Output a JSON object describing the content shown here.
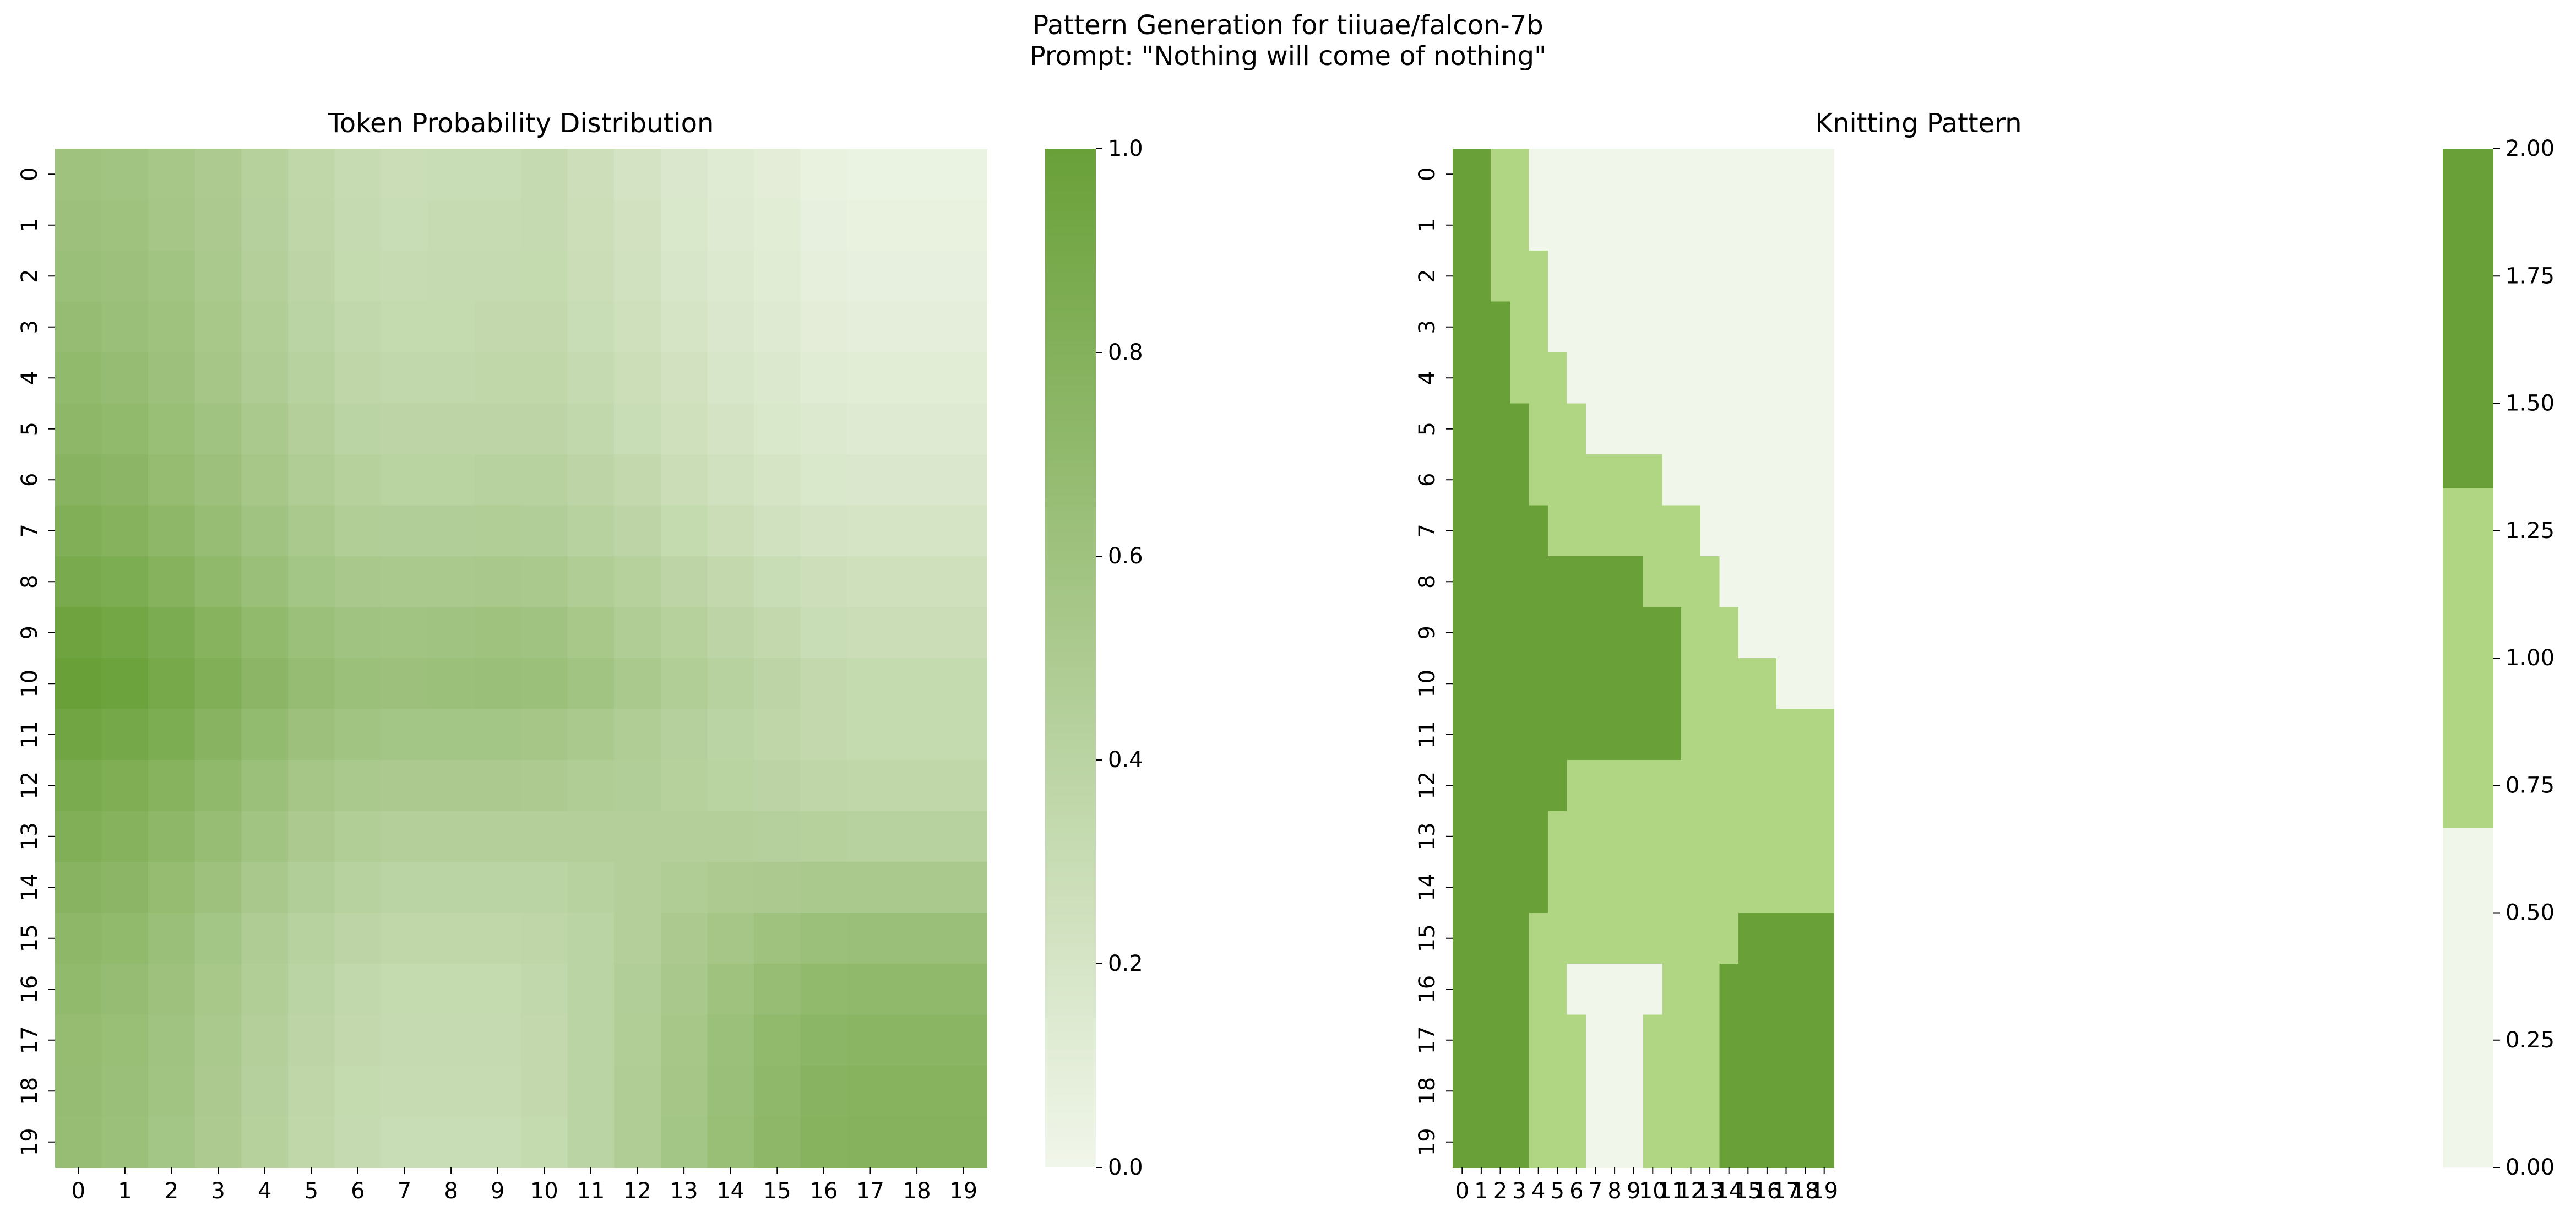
{
  "suptitle": {
    "line1": "Pattern Generation for tiiuae/falcon-7b",
    "line2": "Prompt: \"Nothing will come of nothing\""
  },
  "colors": {
    "low": "#f1f6ea",
    "high": "#69a038",
    "mid": "#b0d684"
  },
  "chart_data": [
    {
      "type": "heatmap",
      "title": "Token Probability Distribution",
      "rows": [
        "0",
        "1",
        "2",
        "3",
        "4",
        "5",
        "6",
        "7",
        "8",
        "9",
        "10",
        "11",
        "12",
        "13",
        "14",
        "15",
        "16",
        "17",
        "18",
        "19"
      ],
      "cols": [
        "0",
        "1",
        "2",
        "3",
        "4",
        "5",
        "6",
        "7",
        "8",
        "9",
        "10",
        "11",
        "12",
        "13",
        "14",
        "15",
        "16",
        "17",
        "18",
        "19"
      ],
      "colorbar": {
        "min": 0.0,
        "max": 1.0,
        "ticks": [
          "0.0",
          "0.2",
          "0.4",
          "0.6",
          "0.8",
          "1.0"
        ]
      },
      "values": [
        [
          0.6,
          0.58,
          0.55,
          0.5,
          0.43,
          0.36,
          0.31,
          0.29,
          0.3,
          0.3,
          0.32,
          0.27,
          0.22,
          0.17,
          0.13,
          0.1,
          0.06,
          0.05,
          0.05,
          0.05
        ],
        [
          0.62,
          0.6,
          0.56,
          0.51,
          0.44,
          0.37,
          0.32,
          0.3,
          0.31,
          0.31,
          0.32,
          0.28,
          0.23,
          0.18,
          0.14,
          0.11,
          0.07,
          0.06,
          0.06,
          0.06
        ],
        [
          0.64,
          0.62,
          0.58,
          0.52,
          0.45,
          0.38,
          0.33,
          0.31,
          0.32,
          0.32,
          0.33,
          0.29,
          0.24,
          0.19,
          0.15,
          0.12,
          0.08,
          0.07,
          0.07,
          0.07
        ],
        [
          0.67,
          0.64,
          0.6,
          0.54,
          0.47,
          0.4,
          0.35,
          0.33,
          0.33,
          0.34,
          0.34,
          0.3,
          0.26,
          0.21,
          0.17,
          0.14,
          0.1,
          0.09,
          0.09,
          0.09
        ],
        [
          0.7,
          0.67,
          0.62,
          0.56,
          0.49,
          0.42,
          0.37,
          0.35,
          0.35,
          0.36,
          0.36,
          0.32,
          0.28,
          0.23,
          0.19,
          0.16,
          0.12,
          0.11,
          0.11,
          0.11
        ],
        [
          0.73,
          0.7,
          0.65,
          0.59,
          0.52,
          0.45,
          0.4,
          0.38,
          0.38,
          0.38,
          0.38,
          0.35,
          0.3,
          0.26,
          0.22,
          0.18,
          0.15,
          0.14,
          0.14,
          0.14
        ],
        [
          0.77,
          0.74,
          0.68,
          0.62,
          0.55,
          0.48,
          0.43,
          0.41,
          0.41,
          0.42,
          0.42,
          0.38,
          0.34,
          0.29,
          0.25,
          0.21,
          0.18,
          0.17,
          0.17,
          0.17
        ],
        [
          0.82,
          0.79,
          0.73,
          0.66,
          0.59,
          0.52,
          0.47,
          0.46,
          0.46,
          0.47,
          0.46,
          0.42,
          0.38,
          0.33,
          0.29,
          0.25,
          0.22,
          0.21,
          0.21,
          0.21
        ],
        [
          0.88,
          0.85,
          0.79,
          0.71,
          0.64,
          0.57,
          0.53,
          0.52,
          0.52,
          0.53,
          0.52,
          0.48,
          0.43,
          0.38,
          0.34,
          0.3,
          0.27,
          0.26,
          0.26,
          0.26
        ],
        [
          0.96,
          0.93,
          0.86,
          0.78,
          0.7,
          0.63,
          0.59,
          0.58,
          0.59,
          0.6,
          0.59,
          0.54,
          0.48,
          0.43,
          0.38,
          0.34,
          0.3,
          0.29,
          0.29,
          0.29
        ],
        [
          1.0,
          0.97,
          0.9,
          0.82,
          0.74,
          0.67,
          0.63,
          0.62,
          0.63,
          0.64,
          0.63,
          0.58,
          0.52,
          0.47,
          0.42,
          0.38,
          0.34,
          0.33,
          0.33,
          0.33
        ],
        [
          0.94,
          0.91,
          0.85,
          0.77,
          0.69,
          0.62,
          0.58,
          0.57,
          0.57,
          0.57,
          0.56,
          0.52,
          0.48,
          0.44,
          0.4,
          0.37,
          0.34,
          0.33,
          0.33,
          0.33
        ],
        [
          0.87,
          0.84,
          0.78,
          0.71,
          0.63,
          0.56,
          0.52,
          0.51,
          0.51,
          0.51,
          0.5,
          0.48,
          0.46,
          0.43,
          0.41,
          0.39,
          0.37,
          0.36,
          0.36,
          0.36
        ],
        [
          0.82,
          0.79,
          0.73,
          0.66,
          0.58,
          0.51,
          0.47,
          0.45,
          0.45,
          0.45,
          0.45,
          0.45,
          0.45,
          0.45,
          0.45,
          0.44,
          0.43,
          0.42,
          0.42,
          0.42
        ],
        [
          0.77,
          0.74,
          0.68,
          0.61,
          0.53,
          0.46,
          0.42,
          0.4,
          0.4,
          0.4,
          0.4,
          0.42,
          0.45,
          0.48,
          0.5,
          0.51,
          0.52,
          0.52,
          0.52,
          0.52
        ],
        [
          0.73,
          0.7,
          0.64,
          0.57,
          0.49,
          0.42,
          0.38,
          0.36,
          0.36,
          0.36,
          0.37,
          0.4,
          0.45,
          0.51,
          0.56,
          0.6,
          0.63,
          0.64,
          0.64,
          0.64
        ],
        [
          0.7,
          0.67,
          0.61,
          0.54,
          0.47,
          0.4,
          0.35,
          0.33,
          0.33,
          0.33,
          0.35,
          0.4,
          0.46,
          0.53,
          0.6,
          0.66,
          0.7,
          0.71,
          0.71,
          0.71
        ],
        [
          0.68,
          0.65,
          0.59,
          0.52,
          0.45,
          0.38,
          0.34,
          0.32,
          0.32,
          0.32,
          0.34,
          0.4,
          0.47,
          0.55,
          0.63,
          0.7,
          0.75,
          0.76,
          0.76,
          0.76
        ],
        [
          0.67,
          0.64,
          0.58,
          0.51,
          0.44,
          0.37,
          0.33,
          0.31,
          0.31,
          0.31,
          0.34,
          0.4,
          0.48,
          0.56,
          0.64,
          0.72,
          0.77,
          0.78,
          0.78,
          0.78
        ],
        [
          0.66,
          0.63,
          0.57,
          0.5,
          0.43,
          0.36,
          0.32,
          0.3,
          0.3,
          0.3,
          0.33,
          0.4,
          0.48,
          0.57,
          0.65,
          0.73,
          0.78,
          0.79,
          0.79,
          0.79
        ]
      ]
    },
    {
      "type": "heatmap",
      "title": "Knitting Pattern",
      "rows": [
        "0",
        "1",
        "2",
        "3",
        "4",
        "5",
        "6",
        "7",
        "8",
        "9",
        "10",
        "11",
        "12",
        "13",
        "14",
        "15",
        "16",
        "17",
        "18",
        "19"
      ],
      "cols": [
        "0",
        "1",
        "2",
        "3",
        "4",
        "5",
        "6",
        "7",
        "8",
        "9",
        "10",
        "11",
        "12",
        "13",
        "14",
        "15",
        "16",
        "17",
        "18",
        "19"
      ],
      "colorbar": {
        "min": 0.0,
        "max": 2.0,
        "levels": 3,
        "ticks": [
          "0.00",
          "0.25",
          "0.50",
          "0.75",
          "1.00",
          "1.25",
          "1.50",
          "1.75",
          "2.00"
        ]
      },
      "values": [
        [
          2,
          2,
          1,
          1,
          0,
          0,
          0,
          0,
          0,
          0,
          0,
          0,
          0,
          0,
          0,
          0,
          0,
          0,
          0,
          0
        ],
        [
          2,
          2,
          1,
          1,
          0,
          0,
          0,
          0,
          0,
          0,
          0,
          0,
          0,
          0,
          0,
          0,
          0,
          0,
          0,
          0
        ],
        [
          2,
          2,
          1,
          1,
          1,
          0,
          0,
          0,
          0,
          0,
          0,
          0,
          0,
          0,
          0,
          0,
          0,
          0,
          0,
          0
        ],
        [
          2,
          2,
          2,
          1,
          1,
          0,
          0,
          0,
          0,
          0,
          0,
          0,
          0,
          0,
          0,
          0,
          0,
          0,
          0,
          0
        ],
        [
          2,
          2,
          2,
          1,
          1,
          1,
          0,
          0,
          0,
          0,
          0,
          0,
          0,
          0,
          0,
          0,
          0,
          0,
          0,
          0
        ],
        [
          2,
          2,
          2,
          2,
          1,
          1,
          1,
          0,
          0,
          0,
          0,
          0,
          0,
          0,
          0,
          0,
          0,
          0,
          0,
          0
        ],
        [
          2,
          2,
          2,
          2,
          1,
          1,
          1,
          1,
          1,
          1,
          1,
          0,
          0,
          0,
          0,
          0,
          0,
          0,
          0,
          0
        ],
        [
          2,
          2,
          2,
          2,
          2,
          1,
          1,
          1,
          1,
          1,
          1,
          1,
          1,
          0,
          0,
          0,
          0,
          0,
          0,
          0
        ],
        [
          2,
          2,
          2,
          2,
          2,
          2,
          2,
          2,
          2,
          2,
          1,
          1,
          1,
          1,
          0,
          0,
          0,
          0,
          0,
          0
        ],
        [
          2,
          2,
          2,
          2,
          2,
          2,
          2,
          2,
          2,
          2,
          2,
          2,
          1,
          1,
          1,
          0,
          0,
          0,
          0,
          0
        ],
        [
          2,
          2,
          2,
          2,
          2,
          2,
          2,
          2,
          2,
          2,
          2,
          2,
          1,
          1,
          1,
          1,
          1,
          0,
          0,
          0
        ],
        [
          2,
          2,
          2,
          2,
          2,
          2,
          2,
          2,
          2,
          2,
          2,
          2,
          1,
          1,
          1,
          1,
          1,
          1,
          1,
          1
        ],
        [
          2,
          2,
          2,
          2,
          2,
          2,
          1,
          1,
          1,
          1,
          1,
          1,
          1,
          1,
          1,
          1,
          1,
          1,
          1,
          1
        ],
        [
          2,
          2,
          2,
          2,
          2,
          1,
          1,
          1,
          1,
          1,
          1,
          1,
          1,
          1,
          1,
          1,
          1,
          1,
          1,
          1
        ],
        [
          2,
          2,
          2,
          2,
          2,
          1,
          1,
          1,
          1,
          1,
          1,
          1,
          1,
          1,
          1,
          1,
          1,
          1,
          1,
          1
        ],
        [
          2,
          2,
          2,
          2,
          1,
          1,
          1,
          1,
          1,
          1,
          1,
          1,
          1,
          1,
          1,
          2,
          2,
          2,
          2,
          2
        ],
        [
          2,
          2,
          2,
          2,
          1,
          1,
          0,
          0,
          0,
          0,
          0,
          1,
          1,
          1,
          2,
          2,
          2,
          2,
          2,
          2
        ],
        [
          2,
          2,
          2,
          2,
          1,
          1,
          1,
          0,
          0,
          0,
          1,
          1,
          1,
          1,
          2,
          2,
          2,
          2,
          2,
          2
        ],
        [
          2,
          2,
          2,
          2,
          1,
          1,
          1,
          0,
          0,
          0,
          1,
          1,
          1,
          1,
          2,
          2,
          2,
          2,
          2,
          2
        ],
        [
          2,
          2,
          2,
          2,
          1,
          1,
          1,
          0,
          0,
          0,
          1,
          1,
          1,
          1,
          2,
          2,
          2,
          2,
          2,
          2
        ]
      ]
    }
  ]
}
